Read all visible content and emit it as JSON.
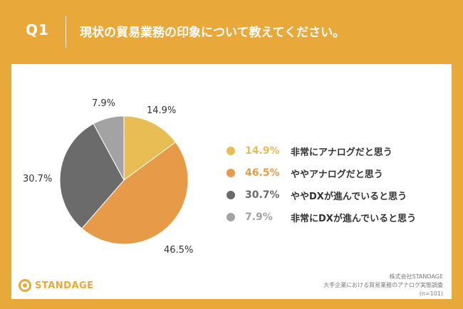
{
  "header": {
    "q_label": "Q1",
    "question": "現状の貿易業務の印象について教えてください。"
  },
  "chart_data": {
    "type": "pie",
    "categories": [
      "非常にアナログだと思う",
      "ややアナログだと思う",
      "ややDXが進んでいると思う",
      "非常にDXが進んでいると思う"
    ],
    "values": [
      14.9,
      46.5,
      30.7,
      7.9
    ],
    "labels": [
      "14.9%",
      "46.5%",
      "30.7%",
      "7.9%"
    ],
    "colors": [
      "#e8be54",
      "#e79b49",
      "#6b6b6b",
      "#a3a3a3"
    ],
    "legend_placement": "right"
  },
  "legend": [
    {
      "pct": "14.9%",
      "label": "非常にアナログだと思う",
      "color": "#e8be54"
    },
    {
      "pct": "46.5%",
      "label": "ややアナログだと思う",
      "color": "#e79b49"
    },
    {
      "pct": "30.7%",
      "label": "ややDXが進んでいると思う",
      "color": "#6b6b6b"
    },
    {
      "pct": "7.9%",
      "label": "非常にDXが進んでいると思う",
      "color": "#a3a3a3"
    }
  ],
  "footer": {
    "logo_text": "STANDAGE",
    "source_line1": "株式会社STANDAGE",
    "source_line2": "大手企業における貿易業務のアナログ実態調査",
    "source_line3": "(n=101)"
  },
  "colors": {
    "background": "#e9a93a",
    "card": "#ffffff"
  }
}
